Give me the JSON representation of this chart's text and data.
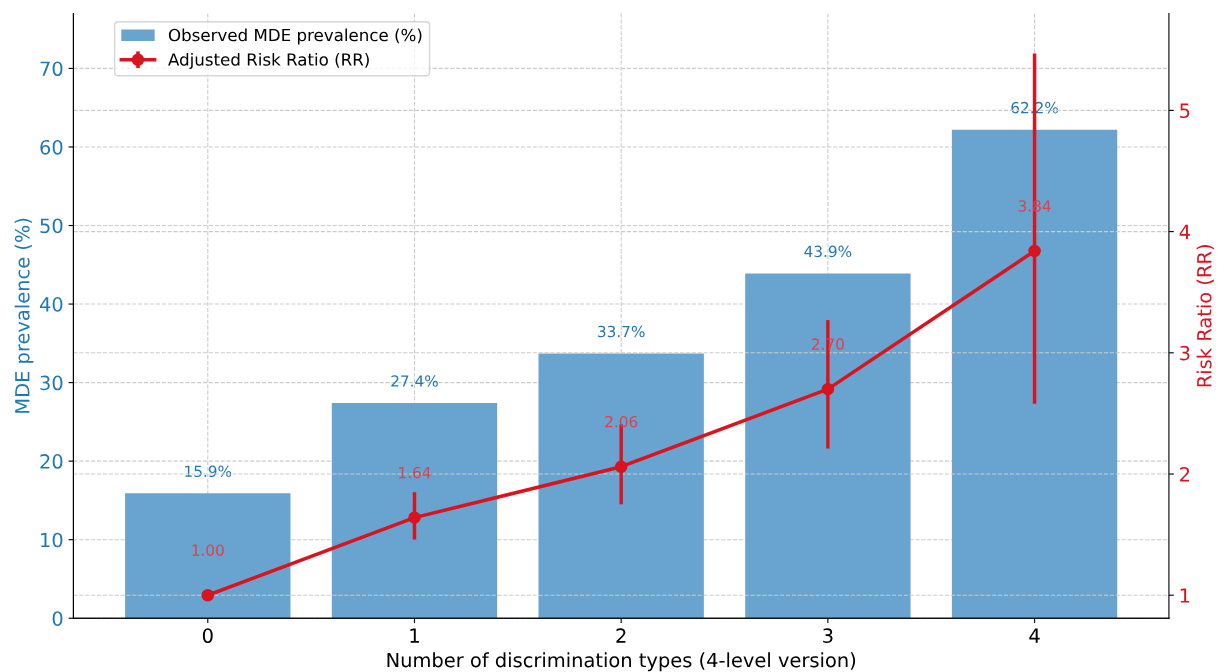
{
  "chart_data": {
    "type": "bar",
    "categories": [
      "0",
      "1",
      "2",
      "3",
      "4"
    ],
    "xlabel": "Number of discrimination types (4-level version)",
    "ylabel": "MDE prevalence (%)",
    "y2label": "Risk Ratio (RR)",
    "ylim": [
      0,
      77
    ],
    "yticks": [
      0,
      10,
      20,
      30,
      40,
      50,
      60,
      70
    ],
    "y2lim": [
      0.81,
      5.8
    ],
    "y2ticks": [
      1,
      2,
      3,
      4,
      5
    ],
    "grid": true,
    "legend": "top left",
    "series": [
      {
        "name": "Observed MDE prevalence (%)",
        "color": "#69a3cf",
        "values": [
          15.9,
          27.4,
          33.7,
          43.9,
          62.2
        ],
        "value_labels": [
          "15.9%",
          "27.4%",
          "33.7%",
          "43.9%",
          "62.2%"
        ]
      },
      {
        "name": "Adjusted Risk Ratio (RR)",
        "type": "line",
        "axis": "y2",
        "color": "#d9141e",
        "marker": "circle",
        "values": [
          1.0,
          1.64,
          2.06,
          2.7,
          3.84
        ],
        "errors": [
          null,
          [
            1.46,
            1.85
          ],
          [
            1.75,
            2.41
          ],
          [
            2.21,
            3.27
          ],
          [
            2.58,
            5.47
          ]
        ],
        "value_labels": [
          "1.00",
          "1.64",
          "2.06",
          "2.70",
          "3.84"
        ]
      }
    ]
  }
}
